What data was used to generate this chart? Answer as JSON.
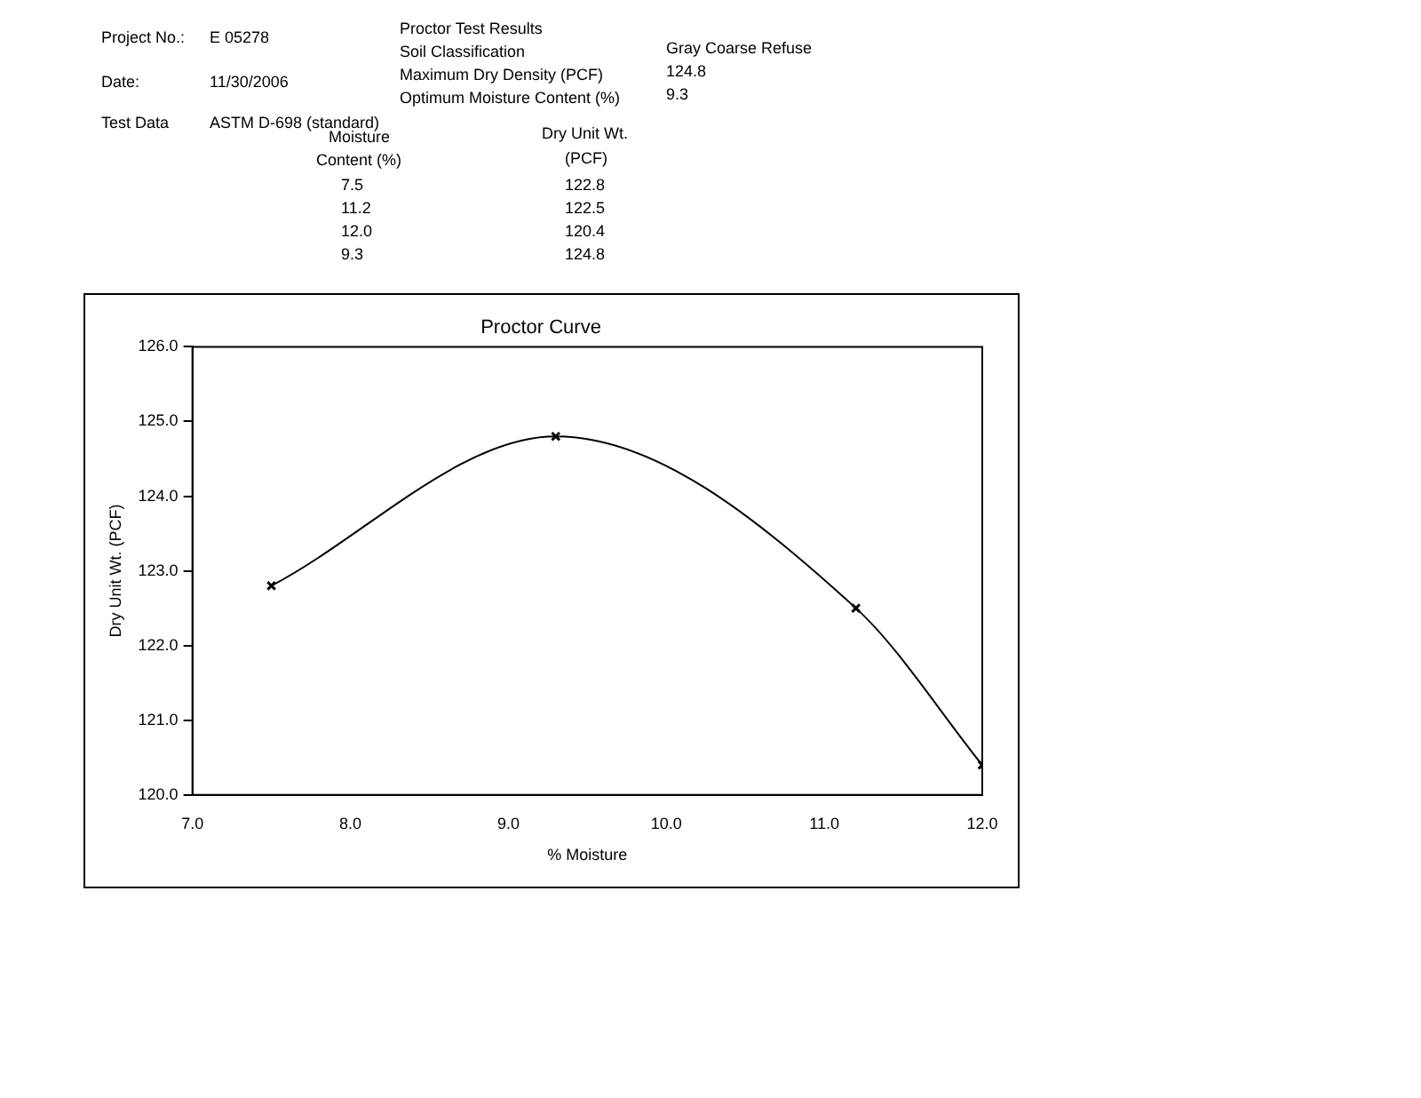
{
  "chart_data": {
    "type": "line",
    "title": "Proctor Curve",
    "xlabel": "% Moisture",
    "ylabel": "Dry Unit Wt. (PCF)",
    "x": [
      7.5,
      9.3,
      11.2,
      12.0
    ],
    "series": [
      {
        "color": "#000000",
        "values": [
          122.8,
          124.8,
          122.5,
          120.4
        ]
      }
    ],
    "xlim": [
      7,
      12
    ],
    "xticks": [
      {
        "value": 7,
        "label": "7.0"
      },
      {
        "value": 8,
        "label": "8.0"
      },
      {
        "value": 9,
        "label": "9.0"
      },
      {
        "value": 10,
        "label": "10.0"
      },
      {
        "value": 11,
        "label": "11.0"
      },
      {
        "value": 12,
        "label": "12.0"
      }
    ],
    "ylim": [
      120,
      126
    ],
    "yticks": [
      {
        "value": 120,
        "label": "120.0"
      },
      {
        "value": 121,
        "label": "121.0"
      },
      {
        "value": 122,
        "label": "122.0"
      },
      {
        "value": 123,
        "label": "123.0"
      },
      {
        "value": 124,
        "label": "124.0"
      },
      {
        "value": 125,
        "label": "125.0"
      },
      {
        "value": 126,
        "label": "126.0"
      }
    ],
    "grid": false,
    "legend": false,
    "marker": "cross",
    "line_style": "solid",
    "annotations": [
      "Project No.:",
      "E 05278",
      "Date:",
      "11/30/2006",
      "Test Data",
      "ASTM D-698 (standard)",
      "Proctor Test Results",
      "Soil Classification",
      "Gray Coarse Refuse",
      "Maximum Dry Density (PCF)",
      "124.8",
      "Optimum Moisture Content (%)",
      "9.3",
      "Moisture",
      "Content (%)",
      "Dry Unit Wt.",
      "(PCF)",
      "7.5",
      "122.8",
      "11.2",
      "122.5",
      "12.0",
      "120.4",
      "9.3",
      "124.8"
    ]
  }
}
